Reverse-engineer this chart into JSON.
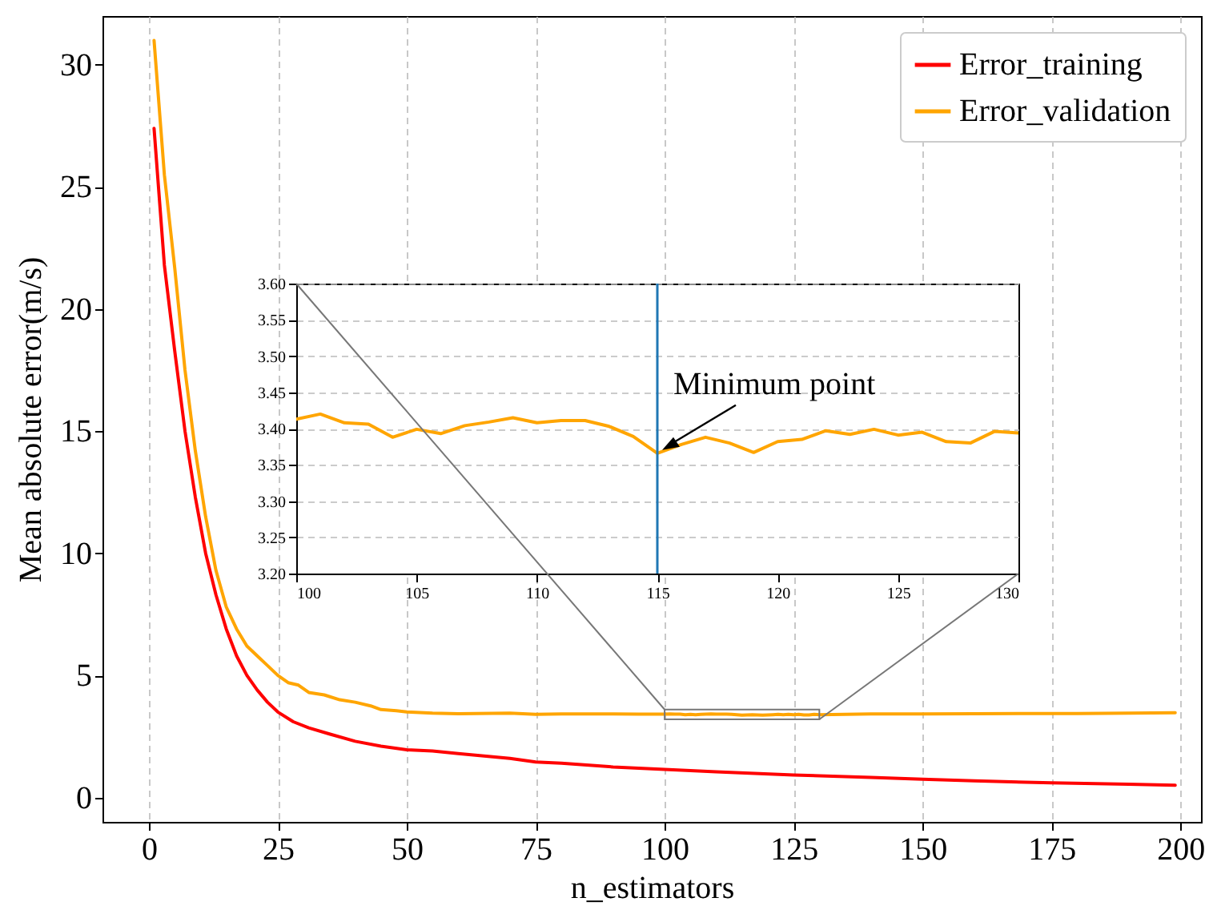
{
  "chart_data": [
    {
      "type": "line",
      "xlabel": "n_estimators",
      "ylabel": "Mean absolute error(m/s)",
      "xlim": [
        -9,
        204
      ],
      "ylim": [
        -1,
        32
      ],
      "xticks": [
        0,
        25,
        50,
        75,
        100,
        125,
        150,
        175,
        200
      ],
      "yticks": [
        0,
        5,
        10,
        15,
        20,
        25,
        30
      ],
      "grid": "x",
      "legend": "top right",
      "series": [
        {
          "name": "Error_training",
          "color": "#ff0000",
          "x": [
            1,
            3,
            5,
            7,
            9,
            11,
            13,
            15,
            17,
            19,
            21,
            23,
            25,
            28,
            31,
            35,
            40,
            45,
            50,
            55,
            60,
            70,
            75,
            80,
            90,
            100,
            110,
            125,
            140,
            150,
            160,
            175,
            190,
            199
          ],
          "values": [
            27.4,
            21.8,
            18.3,
            15.0,
            12.3,
            10.0,
            8.3,
            6.9,
            5.8,
            5.0,
            4.4,
            3.9,
            3.5,
            3.1,
            2.85,
            2.6,
            2.3,
            2.1,
            1.95,
            1.9,
            1.8,
            1.6,
            1.45,
            1.4,
            1.25,
            1.15,
            1.05,
            0.92,
            0.82,
            0.75,
            0.68,
            0.6,
            0.54,
            0.5
          ]
        },
        {
          "name": "Error_validation",
          "color": "#ffa500",
          "x": [
            1,
            3,
            5,
            7,
            9,
            11,
            13,
            15,
            17,
            19,
            21,
            23,
            25,
            27,
            29,
            31,
            34,
            37,
            40,
            43,
            45,
            48,
            50,
            55,
            60,
            70,
            75,
            80,
            90,
            95,
            100,
            101,
            102,
            103,
            104,
            105,
            106,
            107,
            108,
            109,
            110,
            111,
            112,
            113,
            114,
            115,
            116,
            117,
            118,
            119,
            120,
            121,
            122,
            123,
            124,
            125,
            126,
            127,
            128,
            129,
            130,
            140,
            150,
            160,
            170,
            180,
            190,
            199
          ],
          "values": [
            31,
            25.5,
            21.7,
            17.5,
            14.2,
            11.5,
            9.3,
            7.8,
            6.9,
            6.2,
            5.8,
            5.4,
            5.0,
            4.7,
            4.6,
            4.3,
            4.2,
            4.0,
            3.9,
            3.75,
            3.6,
            3.55,
            3.5,
            3.45,
            3.43,
            3.45,
            3.4,
            3.42,
            3.42,
            3.41,
            3.41,
            3.42,
            3.41,
            3.41,
            3.39,
            3.4,
            3.39,
            3.4,
            3.41,
            3.42,
            3.41,
            3.41,
            3.41,
            3.4,
            3.39,
            3.37,
            3.38,
            3.39,
            3.38,
            3.37,
            3.38,
            3.39,
            3.4,
            3.39,
            3.4,
            3.39,
            3.4,
            3.38,
            3.38,
            3.4,
            3.39,
            3.42,
            3.42,
            3.43,
            3.44,
            3.44,
            3.45,
            3.47
          ]
        }
      ]
    },
    {
      "type": "line",
      "xlim": [
        100,
        130
      ],
      "ylim": [
        3.2,
        3.6
      ],
      "xticks": [
        100,
        105,
        110,
        115,
        120,
        125,
        130
      ],
      "yticks": [
        {
          "value": 3.2,
          "label": "3.20"
        },
        {
          "value": 3.25,
          "label": "3.25"
        },
        {
          "value": 3.3,
          "label": "3.30"
        },
        {
          "value": 3.35,
          "label": "3.35"
        },
        {
          "value": 3.4,
          "label": "3.40"
        },
        {
          "value": 3.45,
          "label": "3.45"
        },
        {
          "value": 3.5,
          "label": "3.50"
        },
        {
          "value": 3.55,
          "label": "3.55"
        },
        {
          "value": 3.6,
          "label": "3.60"
        }
      ],
      "grid": "y",
      "series": [
        {
          "color": "#ffa500",
          "x": [
            100,
            101,
            102,
            103,
            104,
            105,
            106,
            107,
            108,
            109,
            110,
            111,
            112,
            113,
            114,
            115,
            116,
            117,
            118,
            119,
            120,
            121,
            122,
            123,
            124,
            125,
            126,
            127,
            128,
            129,
            130
          ],
          "values": [
            3.413,
            3.42,
            3.408,
            3.406,
            3.388,
            3.399,
            3.393,
            3.404,
            3.409,
            3.415,
            3.408,
            3.411,
            3.411,
            3.403,
            3.389,
            3.366,
            3.378,
            3.388,
            3.38,
            3.367,
            3.382,
            3.385,
            3.397,
            3.392,
            3.399,
            3.391,
            3.395,
            3.382,
            3.38,
            3.396,
            3.394
          ]
        }
      ],
      "ref_lines": [
        {
          "axis": "x",
          "value": 115,
          "color": "#1f77b4"
        }
      ],
      "annotations": [
        {
          "text": "Minimum point",
          "x": 115,
          "y": 3.366
        }
      ]
    }
  ]
}
